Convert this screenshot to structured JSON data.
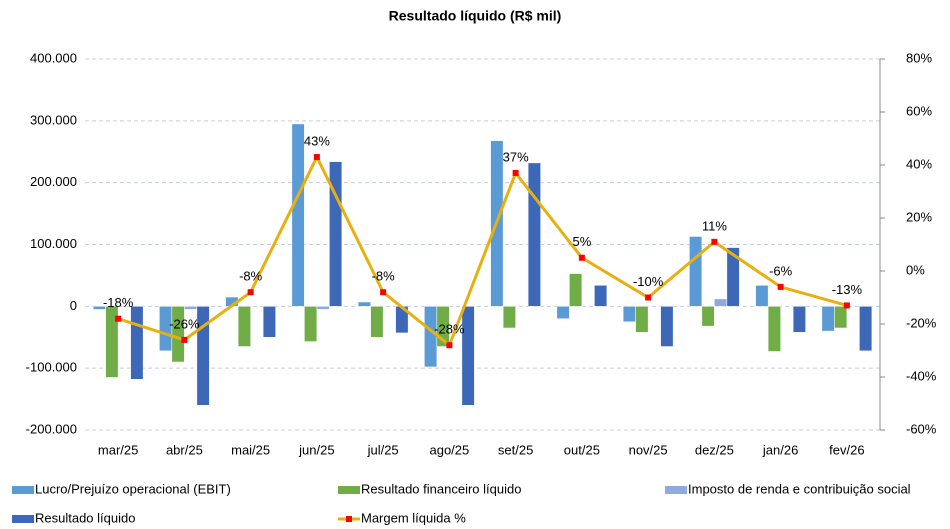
{
  "chart_data": {
    "type": "bar",
    "title": "Resultado líquido (R$ mil)",
    "categories": [
      "mar/25",
      "abr/25",
      "mai/25",
      "jun/25",
      "jul/25",
      "ago/25",
      "set/25",
      "out/25",
      "nov/25",
      "dez/25",
      "jan/26",
      "fev/26"
    ],
    "series": [
      {
        "name": "Lucro/Prejuízo operacional (EBIT)",
        "type": "bar",
        "color": "#5b9bd5",
        "values": [
          -5000,
          -72000,
          15000,
          295000,
          7000,
          -98000,
          268000,
          -20000,
          -25000,
          113000,
          34000,
          -40000
        ]
      },
      {
        "name": "Resultado financeiro líquido",
        "type": "bar",
        "color": "#70ad47",
        "values": [
          -115000,
          -90000,
          -65000,
          -57000,
          -50000,
          -65000,
          -35000,
          53000,
          -42000,
          -32000,
          -73000,
          -35000
        ]
      },
      {
        "name": "Imposto de renda e contribuição social",
        "type": "bar",
        "color": "#8faadc",
        "values": [
          0,
          -5000,
          0,
          -5000,
          0,
          0,
          0,
          0,
          0,
          12000,
          0,
          0
        ]
      },
      {
        "name": "Resultado líquido",
        "type": "bar",
        "color": "#3d68b8",
        "values": [
          -118000,
          -160000,
          -50000,
          234000,
          -43000,
          -160000,
          232000,
          34000,
          -65000,
          95000,
          -42000,
          -72000
        ]
      },
      {
        "name": "Margem líquida %",
        "type": "line",
        "axis": "y2",
        "color": "#e8b00f",
        "marker_color": "#ff0000",
        "values": [
          -18,
          -26,
          -8,
          43,
          -8,
          -28,
          37,
          5,
          -10,
          11,
          -6,
          -13
        ],
        "value_labels": [
          "-18%",
          "-26%",
          "-8%",
          "43%",
          "-8%",
          "-28%",
          "37%",
          "5%",
          "-10%",
          "11%",
          "-6%",
          "-13%"
        ]
      }
    ],
    "ylim": [
      -200000,
      400000
    ],
    "yticks": [
      {
        "value": -200000,
        "label": "-200.000"
      },
      {
        "value": -100000,
        "label": "-100.000"
      },
      0,
      {
        "value": 100000,
        "label": "100.000"
      },
      {
        "value": 200000,
        "label": "200.000"
      },
      {
        "value": 300000,
        "label": "300.000"
      },
      {
        "value": 400000,
        "label": "400.000"
      }
    ],
    "y2lim": [
      -60,
      80
    ],
    "y2ticks": [
      {
        "value": -60,
        "label": "-60%"
      },
      {
        "value": -40,
        "label": "-40%"
      },
      {
        "value": -20,
        "label": "-20%"
      },
      {
        "value": 0,
        "label": "0%"
      },
      {
        "value": 20,
        "label": "20%"
      },
      {
        "value": 40,
        "label": "40%"
      },
      {
        "value": 60,
        "label": "60%"
      },
      {
        "value": 80,
        "label": "80%"
      }
    ],
    "grid": true,
    "legend": "bottom"
  }
}
